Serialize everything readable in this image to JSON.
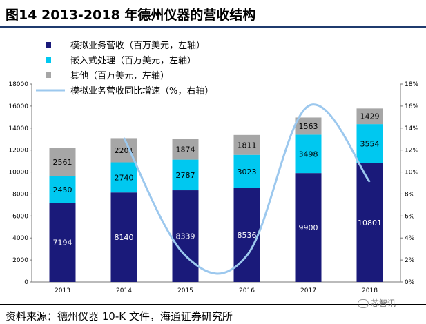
{
  "header": {
    "title": "图14 2013-2018 年德州仪器的营收结构"
  },
  "footer": {
    "source": "资料来源：德州仪器 10-K 文件，海通证券研究所"
  },
  "watermark": {
    "text": "芯智讯"
  },
  "colors": {
    "analog": "#1a1a7a",
    "embedded": "#00c8f0",
    "other": "#a6a6a6",
    "growth": "#9cc8ee"
  },
  "chart_data": {
    "type": "bar",
    "stacked": true,
    "categories": [
      "2013",
      "2014",
      "2015",
      "2016",
      "2017",
      "2018"
    ],
    "series": [
      {
        "name": "模拟业务营收（百万美元，左轴）",
        "values": [
          7194,
          8140,
          8339,
          8536,
          9900,
          10801
        ]
      },
      {
        "name": "嵌入式处理（百万美元，左轴）",
        "values": [
          2450,
          2740,
          2787,
          3023,
          3498,
          3554
        ]
      },
      {
        "name": "其他（百万美元，左轴）",
        "values": [
          2561,
          2201,
          1874,
          1811,
          1563,
          1429
        ]
      }
    ],
    "line_series": {
      "name": "模拟业务营收同比增速（%，右轴）",
      "type": "line",
      "axis": "right",
      "x": [
        "2014",
        "2015",
        "2016",
        "2017",
        "2018"
      ],
      "values": [
        13.1,
        2.4,
        2.4,
        16.0,
        9.1
      ]
    },
    "y_left": {
      "lim": [
        0,
        18000
      ],
      "ticks": [
        "0",
        "2000",
        "4000",
        "6000",
        "8000",
        "10000",
        "12000",
        "14000",
        "16000",
        "18000"
      ]
    },
    "y_right": {
      "lim": [
        0,
        18
      ],
      "ticks": [
        "0%",
        "2%",
        "4%",
        "6%",
        "8%",
        "10%",
        "12%",
        "14%",
        "16%",
        "18%"
      ]
    },
    "legend_position": "top-left",
    "grid": false
  }
}
